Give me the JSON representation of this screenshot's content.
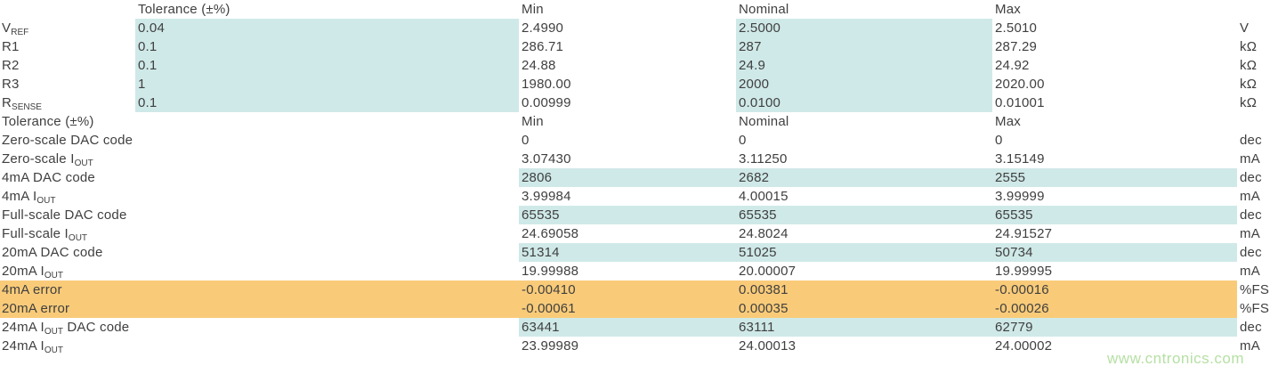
{
  "colors": {
    "highlight_cyan": "#cfe9e8",
    "highlight_orange": "#f9cb79",
    "text": "#3f3f3f",
    "watermark_green": "#b6e0a4"
  },
  "watermark": "www.cntronics.com",
  "components_table": {
    "header": {
      "tolerance": "Tolerance (±%)",
      "min": "Min",
      "nominal": "Nominal",
      "max": "Max"
    },
    "rows": [
      {
        "label_pre": "V",
        "label_sub": "REF",
        "label_post": "",
        "tolerance": "0.04",
        "min": "2.4990",
        "nominal": "2.5000",
        "max": "2.5010",
        "unit": "V"
      },
      {
        "label_pre": "R1",
        "label_sub": "",
        "label_post": "",
        "tolerance": "0.1",
        "min": "286.71",
        "nominal": "287",
        "max": "287.29",
        "unit": "kΩ"
      },
      {
        "label_pre": "R2",
        "label_sub": "",
        "label_post": "",
        "tolerance": "0.1",
        "min": "24.88",
        "nominal": "24.9",
        "max": "24.92",
        "unit": "kΩ"
      },
      {
        "label_pre": "R3",
        "label_sub": "",
        "label_post": "",
        "tolerance": "1",
        "min": "1980.00",
        "nominal": "2000",
        "max": "2020.00",
        "unit": "kΩ"
      },
      {
        "label_pre": "R",
        "label_sub": "SENSE",
        "label_post": "",
        "tolerance": "0.1",
        "min": "0.00999",
        "nominal": "0.0100",
        "max": "0.01001",
        "unit": "kΩ"
      }
    ]
  },
  "results_table": {
    "header": {
      "label": "Tolerance (±%)",
      "min": "Min",
      "nominal": "Nominal",
      "max": "Max"
    },
    "rows": [
      {
        "label_pre": "Zero-scale DAC code",
        "label_sub": "",
        "label_post": "",
        "min": "0",
        "nominal": "0",
        "max": "0",
        "unit": "dec"
      },
      {
        "label_pre": "Zero-scale I",
        "label_sub": "OUT",
        "label_post": "",
        "min": "3.07430",
        "nominal": "3.11250",
        "max": "3.15149",
        "unit": "mA"
      },
      {
        "label_pre": "4mA DAC code",
        "label_sub": "",
        "label_post": "",
        "min": "2806",
        "nominal": "2682",
        "max": "2555",
        "unit": "dec"
      },
      {
        "label_pre": "4mA I",
        "label_sub": "OUT",
        "label_post": "",
        "min": "3.99984",
        "nominal": "4.00015",
        "max": "3.99999",
        "unit": "mA"
      },
      {
        "label_pre": "Full-scale DAC code",
        "label_sub": "",
        "label_post": "",
        "min": "65535",
        "nominal": "65535",
        "max": "65535",
        "unit": "dec"
      },
      {
        "label_pre": "Full-scale I",
        "label_sub": "OUT",
        "label_post": "",
        "min": "24.69058",
        "nominal": "24.8024",
        "max": "24.91527",
        "unit": "mA"
      },
      {
        "label_pre": "20mA DAC code",
        "label_sub": "",
        "label_post": "",
        "min": "51314",
        "nominal": "51025",
        "max": "50734",
        "unit": "dec"
      },
      {
        "label_pre": "20mA I",
        "label_sub": "OUT",
        "label_post": "",
        "min": "19.99988",
        "nominal": "20.00007",
        "max": "19.99995",
        "unit": "mA"
      },
      {
        "label_pre": "4mA error",
        "label_sub": "",
        "label_post": "",
        "min": "-0.00410",
        "nominal": "0.00381",
        "max": "-0.00016",
        "unit": "%FS"
      },
      {
        "label_pre": "20mA error",
        "label_sub": "",
        "label_post": "",
        "min": "-0.00061",
        "nominal": "0.00035",
        "max": "-0.00026",
        "unit": "%FS"
      },
      {
        "label_pre": "24mA I",
        "label_sub": "OUT",
        "label_post": " DAC code",
        "min": "63441",
        "nominal": "63111",
        "max": "62779",
        "unit": "dec"
      },
      {
        "label_pre": "24mA I",
        "label_sub": "OUT",
        "label_post": "",
        "min": "23.99989",
        "nominal": "24.00013",
        "max": "24.00002",
        "unit": "mA"
      }
    ]
  }
}
